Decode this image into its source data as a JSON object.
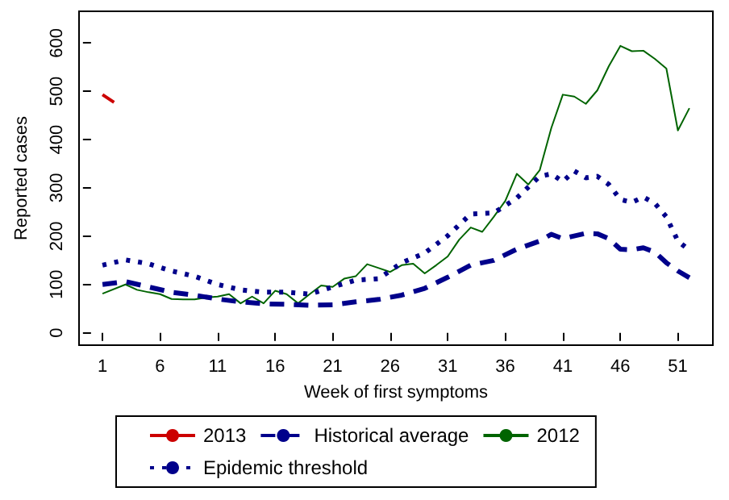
{
  "chart_data": {
    "type": "line",
    "xlabel": "Week of first symptoms",
    "ylabel": "Reported cases",
    "xlim": [
      -1.04,
      54.04
    ],
    "xticks": [
      1,
      6,
      11,
      16,
      21,
      26,
      31,
      36,
      41,
      46,
      51
    ],
    "ylim": [
      -25.6,
      665.6
    ],
    "yticks": [
      0,
      100,
      200,
      300,
      400,
      500,
      600
    ],
    "grid": false,
    "legend": "bottom",
    "marker": "none",
    "series": [
      {
        "name": "2013",
        "color": "#cc0000",
        "line_style": "solid",
        "x": [
          1,
          2
        ],
        "values": [
          493,
          477
        ]
      },
      {
        "name": "2012",
        "color": "#006400",
        "line_style": "solid",
        "x": [
          1,
          3,
          4,
          5,
          6,
          7,
          8,
          9,
          10,
          11,
          12,
          13,
          14,
          15,
          16,
          17,
          18,
          19,
          20,
          21,
          22,
          23,
          24,
          25,
          26,
          27,
          28,
          29,
          30,
          31,
          32,
          33,
          34,
          35,
          36,
          37,
          38,
          39,
          40,
          41,
          42,
          43,
          44,
          45,
          46,
          47,
          48,
          49,
          50,
          51,
          52
        ],
        "values": [
          81,
          100,
          89,
          84,
          80,
          70,
          69,
          69,
          73,
          75,
          80,
          61,
          75,
          61,
          87,
          80,
          61,
          80,
          98,
          95,
          112,
          117,
          142,
          134,
          126,
          140,
          143,
          123,
          140,
          158,
          193,
          218,
          209,
          240,
          273,
          329,
          307,
          337,
          424,
          493,
          489,
          474,
          502,
          552,
          594,
          583,
          584,
          567,
          547,
          419,
          465
        ]
      },
      {
        "name": "Historical average",
        "color": "#00008b",
        "line_style": "dashed",
        "x": [
          1,
          3,
          5,
          7,
          9,
          11,
          13,
          15,
          17,
          19,
          21,
          23,
          25,
          27,
          29,
          31,
          33,
          35,
          37,
          39,
          40,
          41,
          43,
          44,
          45,
          46,
          47,
          48,
          49,
          50,
          51,
          52
        ],
        "values": [
          100,
          106,
          95,
          84,
          78,
          70,
          64,
          60,
          59,
          57,
          58,
          64,
          69,
          78,
          92,
          115,
          140,
          150,
          173,
          190,
          204,
          195,
          206,
          205,
          195,
          173,
          172,
          176,
          167,
          145,
          128,
          114
        ]
      },
      {
        "name": "Epidemic threshold",
        "color": "#00008b",
        "line_style": "dotted",
        "x": [
          1,
          3,
          5,
          7,
          9,
          11,
          13,
          15,
          17,
          19,
          21,
          23,
          25,
          27,
          29,
          31,
          33,
          35,
          37,
          39,
          40,
          41,
          42,
          43,
          44,
          45,
          46,
          47,
          48,
          49,
          50,
          51,
          52
        ],
        "values": [
          140,
          151,
          143,
          128,
          117,
          100,
          89,
          84,
          84,
          80,
          95,
          109,
          112,
          145,
          165,
          201,
          246,
          248,
          279,
          324,
          329,
          313,
          335,
          321,
          324,
          307,
          276,
          270,
          281,
          268,
          240,
          190,
          171
        ]
      }
    ]
  }
}
